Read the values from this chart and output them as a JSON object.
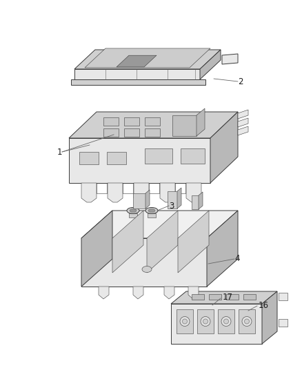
{
  "bg": "#ffffff",
  "lc": "#3a3a3a",
  "lc2": "#666666",
  "lw": 0.7,
  "lw_thin": 0.4,
  "fig_w": 4.38,
  "fig_h": 5.33,
  "dpi": 100,
  "label_fs": 8.5,
  "label_color": "#1a1a1a",
  "shade_light": "#e8e8e8",
  "shade_mid": "#d0d0d0",
  "shade_dark": "#b8b8b8",
  "shade_darker": "#999999"
}
